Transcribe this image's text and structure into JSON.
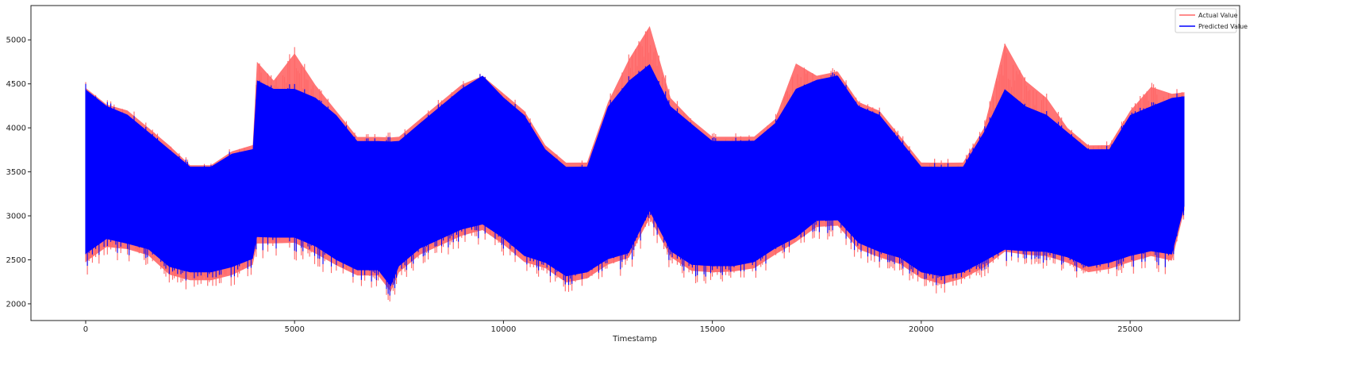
{
  "chart_data": {
    "type": "line",
    "title": "",
    "xlabel": "Timestamp",
    "ylabel": "",
    "xlim": [
      -1310,
      27620
    ],
    "ylim": [
      1810,
      5390
    ],
    "xticks": [
      0,
      5000,
      10000,
      15000,
      20000,
      25000
    ],
    "yticks": [
      2000,
      2500,
      3000,
      3500,
      4000,
      4500,
      5000
    ],
    "grid": false,
    "legend_position": "top-right",
    "note_x": [
      0,
      500,
      1000,
      1500,
      2000,
      2500,
      3000,
      3500,
      4000,
      4100,
      4500,
      5000,
      5500,
      6000,
      6500,
      7000,
      7300,
      7500,
      8000,
      8500,
      9000,
      9500,
      10000,
      10500,
      11000,
      11500,
      12000,
      12500,
      13000,
      13500,
      14000,
      14500,
      15000,
      15500,
      16000,
      16500,
      17000,
      17500,
      18000,
      18500,
      19000,
      19500,
      20000,
      20500,
      21000,
      21500,
      22000,
      22500,
      23000,
      23500,
      24000,
      24500,
      25000,
      25500,
      26000,
      26300
    ],
    "series": [
      {
        "name": "Actual Value",
        "color": "#ff6666",
        "upper": [
          4520,
          4320,
          4250,
          4050,
          3850,
          3620,
          3620,
          3780,
          3850,
          4820,
          4600,
          4920,
          4550,
          4250,
          3950,
          3950,
          3950,
          3950,
          4150,
          4350,
          4550,
          4650,
          4450,
          4250,
          3850,
          3650,
          3650,
          4350,
          4850,
          5230,
          4400,
          4150,
          3950,
          3950,
          3950,
          4150,
          4800,
          4650,
          4700,
          4350,
          4250,
          3950,
          3650,
          3650,
          3650,
          4050,
          5040,
          4600,
          4400,
          4050,
          3850,
          3850,
          4250,
          4530,
          4450,
          4450
        ],
        "lower": [
          2300,
          2500,
          2480,
          2420,
          2200,
          2150,
          2150,
          2200,
          2320,
          2500,
          2520,
          2500,
          2400,
          2280,
          2180,
          2180,
          1980,
          2220,
          2420,
          2520,
          2620,
          2680,
          2520,
          2320,
          2280,
          2120,
          2170,
          2280,
          2320,
          2780,
          2370,
          2220,
          2220,
          2230,
          2270,
          2420,
          2520,
          2720,
          2730,
          2470,
          2380,
          2320,
          2170,
          2100,
          2170,
          2270,
          2380,
          2380,
          2380,
          2330,
          2230,
          2270,
          2320,
          2370,
          2320,
          2950
        ]
      },
      {
        "name": "Predicted Value",
        "color": "#0000ff",
        "upper": [
          4500,
          4300,
          4200,
          4000,
          3800,
          3600,
          3600,
          3750,
          3800,
          4600,
          4500,
          4500,
          4400,
          4200,
          3900,
          3900,
          3900,
          3900,
          4100,
          4300,
          4500,
          4650,
          4400,
          4200,
          3800,
          3600,
          3600,
          4300,
          4600,
          4780,
          4300,
          4100,
          3900,
          3900,
          3900,
          4100,
          4500,
          4600,
          4650,
          4300,
          4200,
          3900,
          3600,
          3600,
          3600,
          4000,
          4500,
          4300,
          4200,
          4000,
          3800,
          3800,
          4200,
          4300,
          4400,
          4400
        ],
        "lower": [
          2400,
          2600,
          2550,
          2500,
          2300,
          2250,
          2250,
          2300,
          2400,
          2600,
          2600,
          2600,
          2500,
          2350,
          2250,
          2250,
          2050,
          2300,
          2500,
          2600,
          2700,
          2750,
          2600,
          2400,
          2350,
          2200,
          2250,
          2350,
          2400,
          2900,
          2450,
          2300,
          2300,
          2300,
          2350,
          2500,
          2600,
          2800,
          2800,
          2550,
          2450,
          2400,
          2250,
          2200,
          2250,
          2350,
          2450,
          2450,
          2450,
          2400,
          2300,
          2350,
          2400,
          2450,
          2400,
          3000
        ]
      }
    ]
  }
}
